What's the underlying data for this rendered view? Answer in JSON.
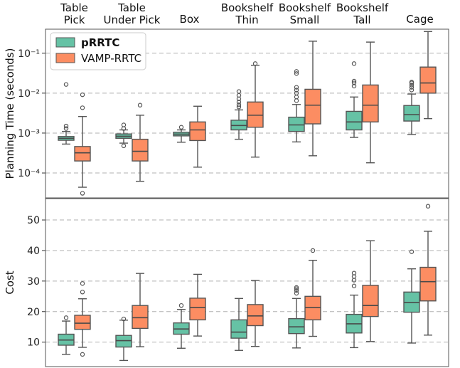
{
  "colors": {
    "prrtc": "#66c2a5",
    "vamp": "#fc8d62",
    "median": "#4a4a4a",
    "grid": "#b0b0b0"
  },
  "chart_data": [
    {
      "type": "box",
      "ylabel": "Planning Time (seconds)",
      "yscale": "log",
      "ylim": [
        2.38e-05,
        0.4
      ],
      "yticks": [
        {
          "value": 0.0001,
          "label": "10⁻⁴"
        },
        {
          "value": 0.001,
          "label": "10⁻³"
        },
        {
          "value": 0.01,
          "label": "10⁻²"
        },
        {
          "value": 0.1,
          "label": "10⁻¹"
        }
      ],
      "categories": [
        {
          "lines": [
            "Table",
            "Pick"
          ]
        },
        {
          "lines": [
            "Table",
            "Under Pick"
          ]
        },
        {
          "lines": [
            "Box"
          ]
        },
        {
          "lines": [
            "Bookshelf",
            "Thin"
          ]
        },
        {
          "lines": [
            "Bookshelf",
            "Small"
          ]
        },
        {
          "lines": [
            "Bookshelf",
            "Tall"
          ]
        },
        {
          "lines": [
            "Cage"
          ]
        }
      ],
      "legend": {
        "position": "top-left",
        "entries": [
          {
            "label": "pRRTC",
            "bold": true
          },
          {
            "label": "VAMP-RRTC",
            "bold": false
          }
        ]
      },
      "series": [
        {
          "name": "pRRTC",
          "boxes": [
            {
              "whislo": 0.00053,
              "q1": 0.00066,
              "med": 0.00074,
              "q3": 0.00082,
              "whishi": 0.0011,
              "fliers": [
                0.0013,
                0.0015,
                0.0165
              ]
            },
            {
              "whislo": 0.00056,
              "q1": 0.00074,
              "med": 0.00083,
              "q3": 0.00095,
              "whislo2": 0,
              "whishi": 0.0012,
              "fliers": [
                0.00048,
                0.0013,
                0.0016
              ]
            },
            {
              "whislo": 0.00059,
              "q1": 0.00085,
              "med": 0.00094,
              "q3": 0.00105,
              "whishi": 0.0012,
              "fliers": [
                0.0014
              ]
            },
            {
              "whislo": 0.0007,
              "q1": 0.0012,
              "med": 0.00155,
              "q3": 0.0021,
              "whishi": 0.0038,
              "fliers": [
                0.0045,
                0.0051,
                0.006,
                0.0072,
                0.0088,
                0.011
              ]
            },
            {
              "whislo": 0.0006,
              "q1": 0.0011,
              "med": 0.0016,
              "q3": 0.0025,
              "whishi": 0.0052,
              "fliers": [
                0.0065,
                0.008,
                0.01,
                0.012,
                0.014,
                0.031,
                0.035
              ]
            },
            {
              "whislo": 0.00078,
              "q1": 0.0012,
              "med": 0.0019,
              "q3": 0.0035,
              "whishi": 0.008,
              "fliers": [
                0.015,
                0.018,
                0.02,
                0.055
              ]
            },
            {
              "whislo": 0.00092,
              "q1": 0.002,
              "med": 0.0029,
              "q3": 0.0049,
              "whishi": 0.0095,
              "fliers": [
                0.012,
                0.014,
                0.016,
                0.018,
                0.019
              ]
            }
          ]
        },
        {
          "name": "VAMP-RRTC",
          "boxes": [
            {
              "whislo": 4.4e-05,
              "q1": 0.0002,
              "med": 0.00032,
              "q3": 0.00046,
              "whishi": 0.0026,
              "fliers": [
                3.1e-05,
                0.0043,
                0.0091
              ]
            },
            {
              "whislo": 6.2e-05,
              "q1": 0.0002,
              "med": 0.00035,
              "q3": 0.0007,
              "whishi": 0.0028,
              "fliers": [
                0.005
              ]
            },
            {
              "whislo": 0.00014,
              "q1": 0.00065,
              "med": 0.0012,
              "q3": 0.0019,
              "whishi": 0.0047,
              "fliers": []
            },
            {
              "whislo": 0.00025,
              "q1": 0.0014,
              "med": 0.0028,
              "q3": 0.006,
              "whishi": 0.05,
              "fliers": [
                0.055
              ]
            },
            {
              "whislo": 0.00027,
              "q1": 0.0017,
              "med": 0.005,
              "q3": 0.0125,
              "whishi": 0.2,
              "fliers": []
            },
            {
              "whislo": 0.00018,
              "q1": 0.0019,
              "med": 0.005,
              "q3": 0.016,
              "whishi": 0.19,
              "fliers": []
            },
            {
              "whislo": 0.0023,
              "q1": 0.01,
              "med": 0.018,
              "q3": 0.045,
              "whishi": 0.35,
              "fliers": []
            }
          ]
        }
      ]
    },
    {
      "type": "box",
      "ylabel": "Cost",
      "yscale": "linear",
      "ylim": [
        2,
        57
      ],
      "yticks": [
        {
          "value": 10,
          "label": "10"
        },
        {
          "value": 20,
          "label": "20"
        },
        {
          "value": 30,
          "label": "30"
        },
        {
          "value": 40,
          "label": "40"
        },
        {
          "value": 50,
          "label": "50"
        }
      ],
      "series": [
        {
          "name": "pRRTC",
          "boxes": [
            {
              "whislo": 6,
              "q1": 9,
              "med": 10.7,
              "q3": 12.6,
              "whishi": 16.9,
              "fliers": [
                18
              ]
            },
            {
              "whislo": 4,
              "q1": 8.4,
              "med": 10.5,
              "q3": 12.2,
              "whishi": 17.2,
              "fliers": [
                17.6
              ]
            },
            {
              "whislo": 8,
              "q1": 12.6,
              "med": 14.3,
              "q3": 16.3,
              "whishi": 20.7,
              "fliers": [
                22
              ]
            },
            {
              "whislo": 7.3,
              "q1": 11.3,
              "med": 13.3,
              "q3": 17.3,
              "whishi": 24.3,
              "fliers": []
            },
            {
              "whislo": 8.1,
              "q1": 12.8,
              "med": 15,
              "q3": 17.7,
              "whishi": 24.3,
              "fliers": [
                26,
                26.9,
                27.5,
                27.9
              ]
            },
            {
              "whislo": 8.2,
              "q1": 13,
              "med": 16,
              "q3": 19.1,
              "whishi": 25.4,
              "fliers": [
                28.4,
                30.3,
                31.5,
                32.6
              ]
            },
            {
              "whislo": 9.7,
              "q1": 19.8,
              "med": 23,
              "q3": 26.4,
              "whishi": 34,
              "fliers": [
                39.6
              ]
            }
          ]
        },
        {
          "name": "VAMP-RRTC",
          "boxes": [
            {
              "whislo": 8.3,
              "q1": 14.2,
              "med": 16.2,
              "q3": 18.8,
              "whishi": 24.2,
              "fliers": [
                6,
                26.4,
                29.2
              ]
            },
            {
              "whislo": 8.5,
              "q1": 14.5,
              "med": 18,
              "q3": 22,
              "whishi": 32.5,
              "fliers": []
            },
            {
              "whislo": 12,
              "q1": 17.3,
              "med": 21.3,
              "q3": 24.4,
              "whishi": 32.2,
              "fliers": []
            },
            {
              "whislo": 8.6,
              "q1": 15.4,
              "med": 18.6,
              "q3": 22.3,
              "whishi": 30.2,
              "fliers": []
            },
            {
              "whislo": 11.9,
              "q1": 17.3,
              "med": 21.3,
              "q3": 25,
              "whishi": 36.8,
              "fliers": [
                40
              ]
            },
            {
              "whislo": 10.2,
              "q1": 18.4,
              "med": 22,
              "q3": 28.6,
              "whishi": 43.2,
              "fliers": []
            },
            {
              "whislo": 12.3,
              "q1": 23.5,
              "med": 29.8,
              "q3": 34.5,
              "whishi": 46.3,
              "fliers": [
                54.5
              ]
            }
          ]
        }
      ]
    }
  ]
}
